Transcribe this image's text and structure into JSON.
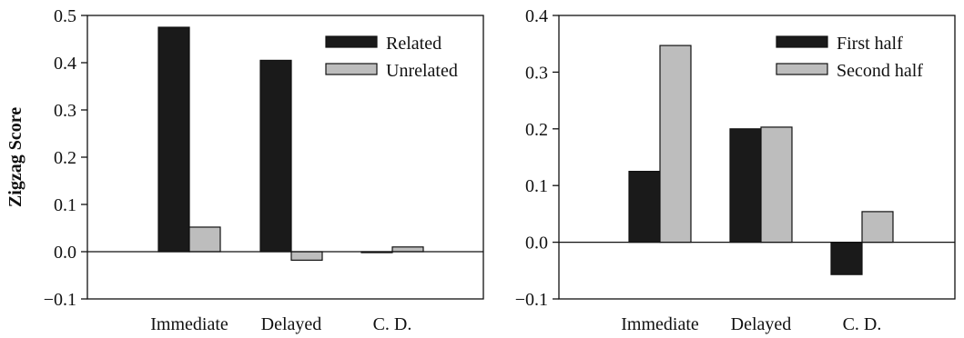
{
  "chart_data": [
    {
      "type": "bar",
      "title": "",
      "xlabel": "",
      "ylabel": "Zigzag Score",
      "ylim": [
        -0.1,
        0.5
      ],
      "yticks": [
        -0.1,
        0.0,
        0.1,
        0.2,
        0.3,
        0.4,
        0.5
      ],
      "ytick_labels": [
        "−0.1",
        "0.0",
        "0.1",
        "0.2",
        "0.3",
        "0.4",
        "0.5"
      ],
      "categories": [
        "Immediate",
        "Delayed",
        "C. D."
      ],
      "series": [
        {
          "name": "Related",
          "values": [
            0.475,
            0.405,
            -0.002
          ],
          "color": "#1a1a1a"
        },
        {
          "name": "Unrelated",
          "values": [
            0.052,
            -0.018,
            0.01
          ],
          "color": "#bdbdbd"
        }
      ],
      "legend": "top-right",
      "grid": false
    },
    {
      "type": "bar",
      "title": "",
      "xlabel": "",
      "ylabel": "",
      "ylim": [
        -0.1,
        0.4
      ],
      "yticks": [
        -0.1,
        0.0,
        0.1,
        0.2,
        0.3,
        0.4
      ],
      "ytick_labels": [
        "−0.1",
        "0.0",
        "0.1",
        "0.2",
        "0.3",
        "0.4"
      ],
      "categories": [
        "Immediate",
        "Delayed",
        "C. D."
      ],
      "series": [
        {
          "name": "First half",
          "values": [
            0.125,
            0.2,
            -0.057
          ],
          "color": "#1a1a1a"
        },
        {
          "name": "Second half",
          "values": [
            0.347,
            0.203,
            0.054
          ],
          "color": "#bdbdbd"
        }
      ],
      "legend": "top-right",
      "grid": false
    }
  ]
}
